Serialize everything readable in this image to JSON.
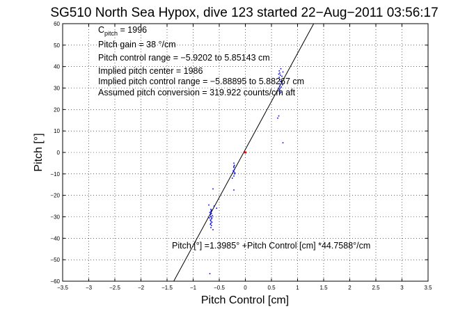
{
  "chart_data": {
    "type": "scatter",
    "title": "SG510 North Sea Hypox, dive 123 started 22−Aug−2011 03:56:17",
    "xlabel": "Pitch Control [cm]",
    "ylabel": "Pitch [°]",
    "xlim": [
      -3.5,
      3.5
    ],
    "ylim": [
      -60,
      60
    ],
    "x_ticks": [
      -3.5,
      -3,
      -2.5,
      -2,
      -1.5,
      -1,
      -0.5,
      0,
      0.5,
      1,
      1.5,
      2,
      2.5,
      3,
      3.5
    ],
    "x_tick_labels": [
      "−3.5",
      "−3",
      "−2.5",
      "−2",
      "−1.5",
      "−1",
      "−0.5",
      "0",
      "0.5",
      "1",
      "1.5",
      "2",
      "2.5",
      "3",
      "3.5"
    ],
    "y_ticks": [
      -60,
      -50,
      -40,
      -30,
      -20,
      -10,
      0,
      10,
      20,
      30,
      40,
      50,
      60
    ],
    "y_tick_labels": [
      "−60",
      "−50",
      "−40",
      "−30",
      "−20",
      "−10",
      "0",
      "10",
      "20",
      "30",
      "40",
      "50",
      "60"
    ],
    "grid": true,
    "colors": {
      "points": "#0000ff",
      "center_point": "#ff0000",
      "fit_line": "#000000"
    },
    "annotations": {
      "c_pitch_main": "C",
      "c_pitch_sub": "pitch",
      "c_pitch_rest": " = 1996",
      "line2": "Pitch gain = 38 °/cm",
      "line3": "Pitch control range = −5.9202 to 5.85143 cm",
      "line4": "Implied pitch center = 1986",
      "line5": "Implied pitch control range = −5.88895 to 5.88267 cm",
      "line6": "Assumed pitch conversion = 319.922 counts/cm aft",
      "fit_text": "Pitch [°] =1.3985° +Pitch Control [cm] *44.7588°/cm"
    },
    "fit": {
      "intercept": 1.3985,
      "slope": 44.7588
    },
    "center_point": {
      "x": 0.0,
      "y": 0.0
    },
    "series": [
      {
        "points": [
          [
            -0.66,
            -26.5
          ],
          [
            -0.66,
            -27.5
          ],
          [
            -0.65,
            -28.5
          ],
          [
            -0.67,
            -29.0
          ],
          [
            -0.66,
            -30.0
          ],
          [
            -0.65,
            -31.0
          ],
          [
            -0.67,
            -31.5
          ],
          [
            -0.66,
            -32.0
          ],
          [
            -0.66,
            -33.0
          ],
          [
            -0.65,
            -34.0
          ],
          [
            -0.68,
            -28.0
          ],
          [
            -0.64,
            -30.5
          ],
          [
            -0.63,
            -29.5
          ],
          [
            -0.69,
            -30.5
          ],
          [
            -0.66,
            -35.0
          ],
          [
            -0.65,
            -27.0
          ],
          [
            -0.67,
            -33.5
          ],
          [
            -0.64,
            -32.5
          ],
          [
            -0.66,
            -29.8
          ],
          [
            -0.6,
            -25.0
          ],
          [
            -0.7,
            -24.5
          ],
          [
            -0.62,
            -36.0
          ],
          [
            -0.55,
            -26.0
          ],
          [
            -0.68,
            -56.5
          ],
          [
            -0.62,
            -17.0
          ],
          [
            -0.22,
            -5.0
          ],
          [
            -0.21,
            -6.0
          ],
          [
            -0.22,
            -7.0
          ],
          [
            -0.21,
            -8.0
          ],
          [
            -0.22,
            -9.0
          ],
          [
            -0.21,
            -10.0
          ],
          [
            -0.22,
            -11.0
          ],
          [
            -0.22,
            -6.5
          ],
          [
            -0.23,
            -8.5
          ],
          [
            -0.2,
            -9.5
          ],
          [
            -0.22,
            -17.5
          ],
          [
            -0.25,
            -12.0
          ],
          [
            0.65,
            38.0
          ],
          [
            0.66,
            37.0
          ],
          [
            0.67,
            36.0
          ],
          [
            0.65,
            35.0
          ],
          [
            0.66,
            34.0
          ],
          [
            0.67,
            33.0
          ],
          [
            0.65,
            32.0
          ],
          [
            0.66,
            31.0
          ],
          [
            0.67,
            30.0
          ],
          [
            0.66,
            29.0
          ],
          [
            0.68,
            28.0
          ],
          [
            0.7,
            35.5
          ],
          [
            0.7,
            32.5
          ],
          [
            0.69,
            30.5
          ],
          [
            0.68,
            39.0
          ],
          [
            0.72,
            37.5
          ],
          [
            0.64,
            36.5
          ],
          [
            0.66,
            27.5
          ],
          [
            0.71,
            31.5
          ],
          [
            0.65,
            29.5
          ],
          [
            0.64,
            17.0
          ],
          [
            0.62,
            16.0
          ],
          [
            0.72,
            4.5
          ]
        ]
      }
    ]
  }
}
